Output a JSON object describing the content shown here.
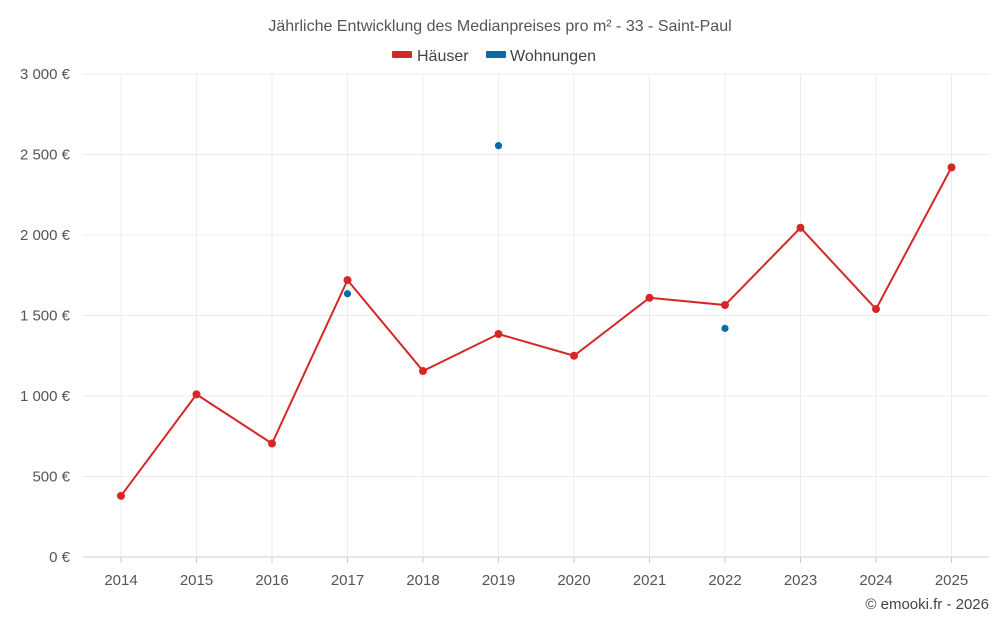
{
  "chart_data": {
    "type": "line",
    "title": "Jährliche Entwicklung des Medianpreises pro m² - 33 - Saint-Paul",
    "xlabel": "",
    "ylabel": "",
    "categories": [
      "2014",
      "2015",
      "2016",
      "2017",
      "2018",
      "2019",
      "2020",
      "2021",
      "2022",
      "2023",
      "2024",
      "2025"
    ],
    "ylim": [
      0,
      3000
    ],
    "yticks": [
      0,
      500,
      1000,
      1500,
      2000,
      2500,
      3000
    ],
    "ytick_labels": [
      "0 €",
      "500 €",
      "1 000 €",
      "1 500 €",
      "2 000 €",
      "2 500 €",
      "3 000 €"
    ],
    "grid": true,
    "legend_position": "top-center",
    "series": [
      {
        "name": "Häuser",
        "color": "#d62728",
        "style": "line",
        "values": [
          380,
          1010,
          705,
          1720,
          1155,
          1385,
          1250,
          1610,
          1565,
          2045,
          1540,
          2420
        ]
      },
      {
        "name": "Wohnungen",
        "color": "#0a6aa8",
        "style": "points",
        "values": [
          null,
          null,
          null,
          1635,
          null,
          2555,
          null,
          null,
          1420,
          null,
          null,
          null
        ]
      }
    ]
  },
  "credit": "© emooki.fr - 2026"
}
